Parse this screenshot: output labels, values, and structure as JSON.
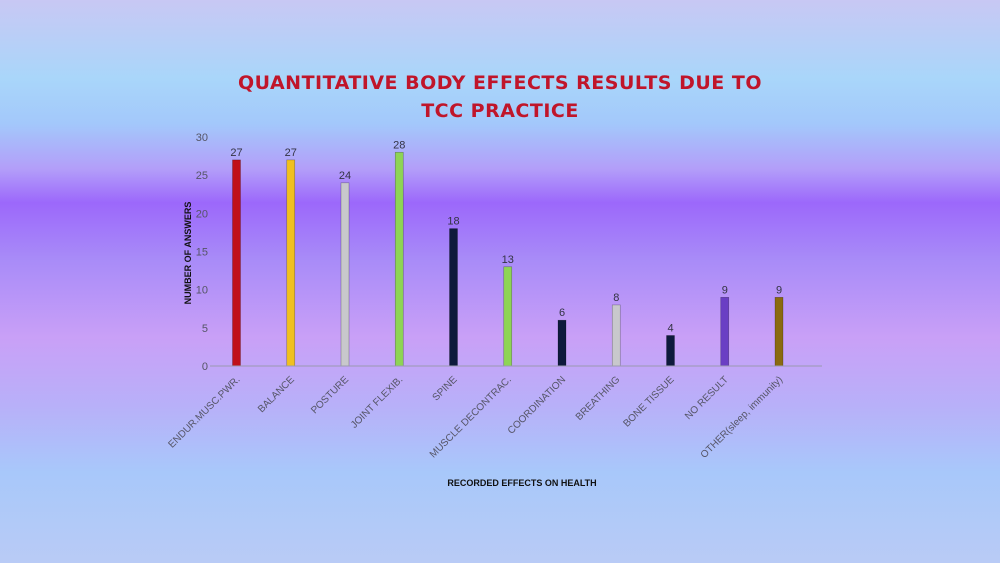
{
  "chart_data": {
    "type": "bar",
    "title_lines": [
      "QUANTITATIVE BODY EFFECTS RESULTS DUE TO",
      "TCC PRACTICE"
    ],
    "xlabel": "RECORDED EFFECTS ON HEALTH",
    "ylabel": "NUMBER OF ANSWERS",
    "ylim": [
      0,
      30
    ],
    "yticks": [
      0,
      5,
      10,
      15,
      20,
      25,
      30
    ],
    "grid": false,
    "legend": "none",
    "categories": [
      "ENDUR.MUSC.PWR.",
      "BALANCE",
      "POSTURE",
      "JOINT FLEXIB.",
      "SPINE",
      "MUSCLE DECONTRAC.",
      "COORDINATION",
      "BREATHING",
      "BONE TISSUE",
      "NO RESULT",
      "OTHER(sleep, immunity)"
    ],
    "values": [
      27,
      27,
      24,
      28,
      18,
      13,
      6,
      8,
      4,
      9,
      9
    ],
    "colors": [
      "#c0101a",
      "#f0c020",
      "#c8c8cc",
      "#8ed455",
      "#0e1a3c",
      "#8ed455",
      "#0e1a3c",
      "#c8c8cc",
      "#0e1a3c",
      "#6a3fc4",
      "#8a6a10"
    ]
  }
}
